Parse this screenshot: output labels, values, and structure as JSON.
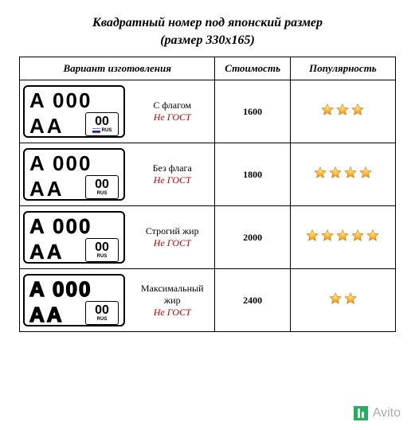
{
  "title_line1": "Квадратный номер под японский размер",
  "title_line2": "(размер 330х165)",
  "headers": {
    "variant": "Вариант изготовления",
    "cost": "Стоимость",
    "popularity": "Популярность"
  },
  "plate": {
    "top": "A 000",
    "bottom_left": "AA",
    "region": "00",
    "rus": "RUS"
  },
  "rows": [
    {
      "name": "С флагом",
      "sub": "Не ГОСТ",
      "cost": "1600",
      "stars": 3,
      "has_flag": true,
      "weight": "normal"
    },
    {
      "name": "Без флага",
      "sub": "Не ГОСТ",
      "cost": "1800",
      "stars": 4,
      "has_flag": false,
      "weight": "normal"
    },
    {
      "name": "Строгий жир",
      "sub": "Не ГОСТ",
      "cost": "2000",
      "stars": 5,
      "has_flag": false,
      "weight": "bold"
    },
    {
      "name": "Максимальный жир",
      "sub": "Не ГОСТ",
      "cost": "2400",
      "stars": 2,
      "has_flag": false,
      "weight": "max"
    }
  ],
  "watermark": "Avito",
  "colors": {
    "star_fill": "#f7a823",
    "star_stroke": "#c76a00",
    "sub_text": "#c00000",
    "border": "#000000",
    "flag_blue": "#0039a6",
    "flag_red": "#d52b1e"
  }
}
